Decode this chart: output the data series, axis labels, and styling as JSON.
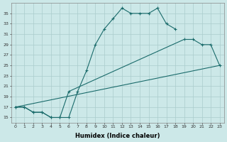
{
  "xlabel": "Humidex (Indice chaleur)",
  "bg_color": "#cce8e8",
  "grid_color": "#aacccc",
  "line_color": "#1a6b6b",
  "top_curve_x": [
    0,
    1,
    2,
    3,
    4,
    5,
    6,
    7,
    8,
    9,
    10,
    11,
    12,
    13,
    14,
    15,
    16,
    17,
    18
  ],
  "top_curve_y": [
    17,
    17,
    16,
    16,
    15,
    15,
    15,
    20,
    24,
    29,
    32,
    34,
    36,
    35,
    35,
    35,
    36,
    33,
    32
  ],
  "mid_curve_x": [
    0,
    1,
    2,
    3,
    4,
    5,
    6,
    19,
    20,
    21,
    22,
    23
  ],
  "mid_curve_y": [
    17,
    17,
    16,
    16,
    15,
    15,
    20,
    30,
    30,
    29,
    29,
    25
  ],
  "bot_line_x": [
    0,
    23
  ],
  "bot_line_y": [
    17,
    25
  ],
  "ylim": [
    14,
    37
  ],
  "xlim": [
    -0.5,
    23.5
  ],
  "yticks": [
    15,
    17,
    19,
    21,
    23,
    25,
    27,
    29,
    31,
    33,
    35
  ],
  "xticks": [
    0,
    1,
    2,
    3,
    4,
    5,
    6,
    7,
    8,
    9,
    10,
    11,
    12,
    13,
    14,
    15,
    16,
    17,
    18,
    19,
    20,
    21,
    22,
    23
  ]
}
